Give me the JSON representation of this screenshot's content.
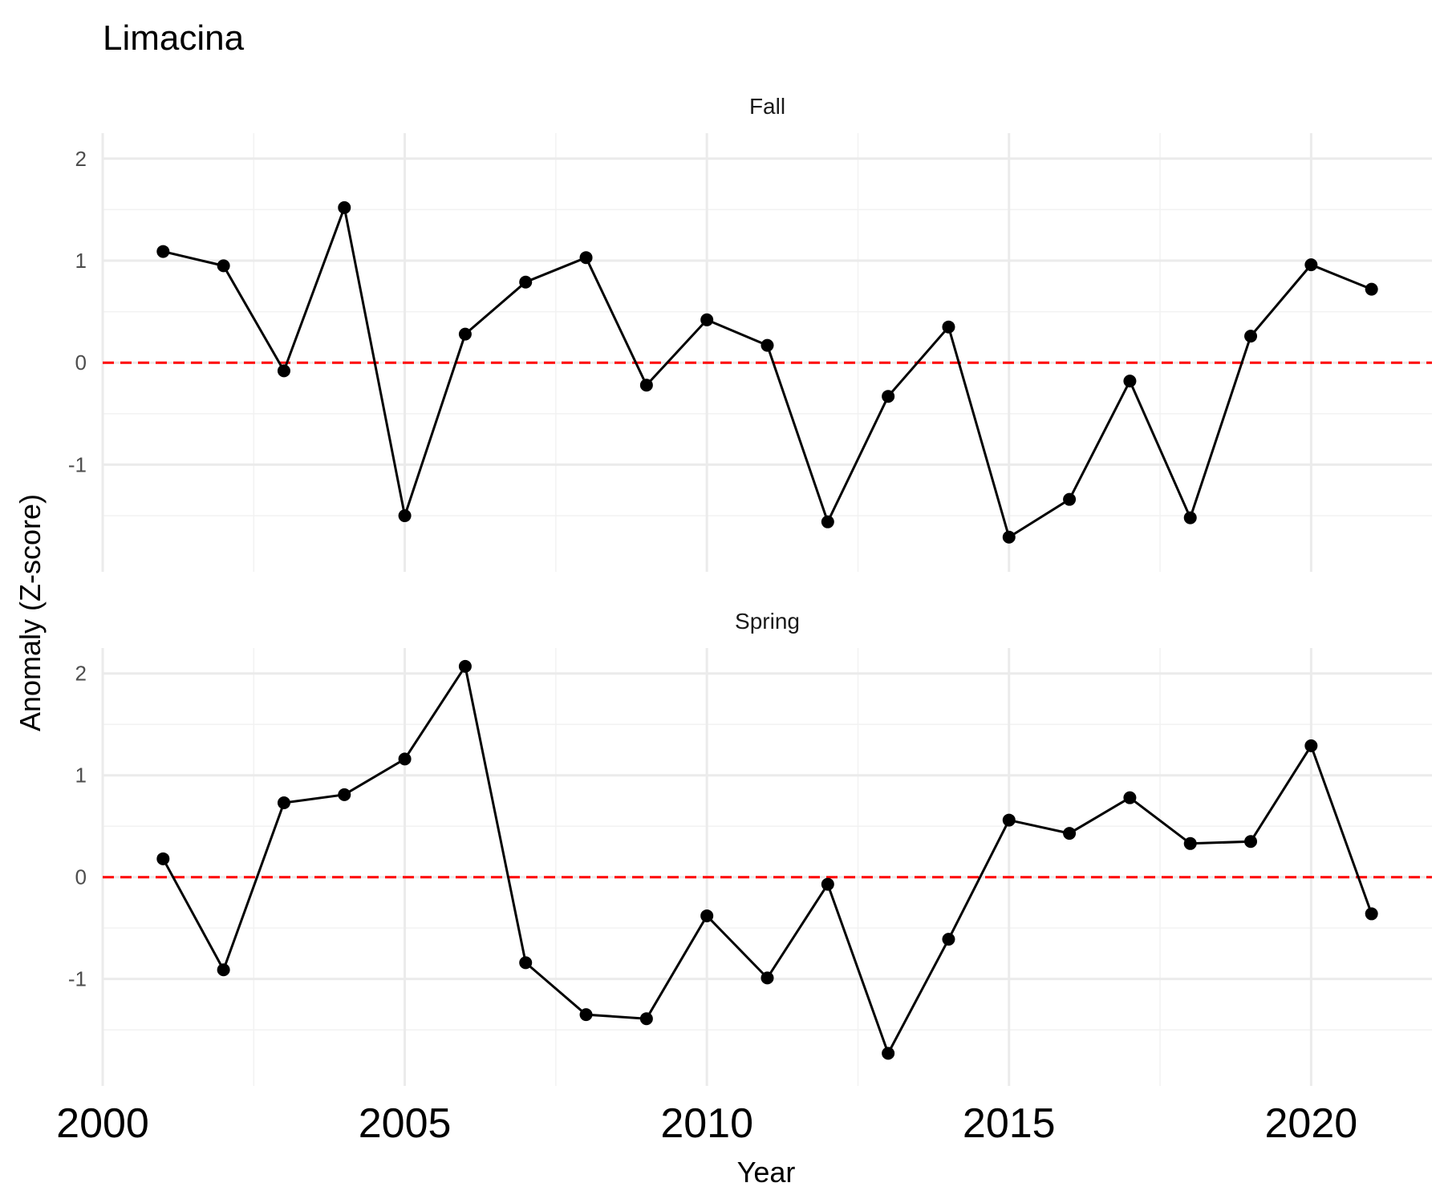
{
  "chart_data": {
    "type": "line",
    "title": "Limacina",
    "xlabel": "Year",
    "ylabel": "Anomaly (Z-score)",
    "xlim": [
      2000,
      2022
    ],
    "x_ticks": [
      "2000",
      "2005",
      "2010",
      "2015",
      "2020"
    ],
    "x_tick_values": [
      2000,
      2005,
      2010,
      2015,
      2020
    ],
    "ylim": [
      -2.05,
      2.25
    ],
    "y_ticks": [
      "-1",
      "0",
      "1",
      "2"
    ],
    "y_tick_values": [
      -1,
      0,
      1,
      2
    ],
    "grid": true,
    "reference_line": {
      "y": 0,
      "color": "#ff0000",
      "style": "dashed"
    },
    "panels": [
      {
        "name": "Fall",
        "x": [
          2001,
          2002,
          2003,
          2004,
          2005,
          2006,
          2007,
          2008,
          2009,
          2010,
          2011,
          2012,
          2013,
          2014,
          2015,
          2016,
          2017,
          2018,
          2019,
          2020,
          2021
        ],
        "values": [
          1.09,
          0.95,
          -0.08,
          1.52,
          -1.5,
          0.28,
          0.79,
          1.03,
          -0.22,
          0.42,
          0.17,
          -1.56,
          -0.33,
          0.35,
          -1.71,
          -1.34,
          -0.18,
          -1.52,
          0.26,
          0.96,
          0.72
        ]
      },
      {
        "name": "Spring",
        "x": [
          2001,
          2002,
          2003,
          2004,
          2005,
          2006,
          2007,
          2008,
          2009,
          2010,
          2011,
          2012,
          2013,
          2014,
          2015,
          2016,
          2017,
          2018,
          2019,
          2020,
          2021
        ],
        "values": [
          0.18,
          -0.91,
          0.73,
          0.81,
          1.16,
          2.07,
          -0.84,
          -1.35,
          -1.39,
          -0.38,
          -0.99,
          -0.07,
          -1.73,
          -0.61,
          0.56,
          0.43,
          0.78,
          0.33,
          0.35,
          1.29,
          -0.36
        ]
      }
    ]
  }
}
